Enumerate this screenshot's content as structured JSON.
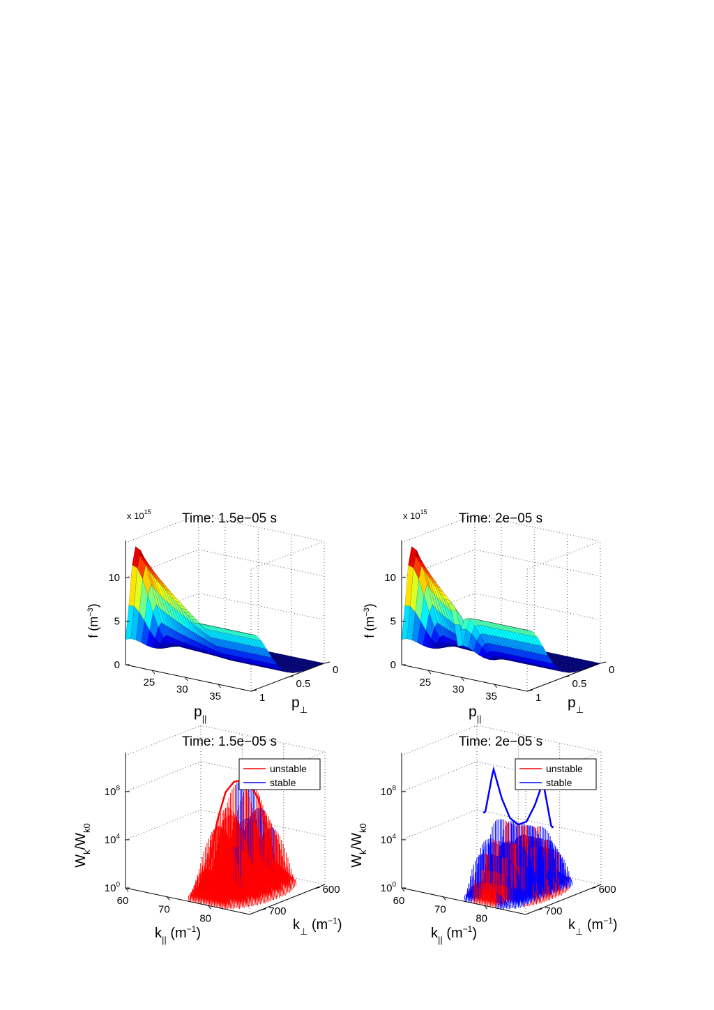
{
  "chart_data": [
    {
      "type": "surface",
      "title": "Time: 1.5e−05 s",
      "xlabel": "p",
      "xlabel_sub": "||",
      "ylabel": "p",
      "ylabel_sub": "⊥",
      "zlabel": "f (m",
      "zlabel_sup": "−3",
      "zlabel_end": ")",
      "z_multiplier": "x 10",
      "z_multiplier_exp": "15",
      "xlim": [
        21,
        40
      ],
      "ylim": [
        0,
        1
      ],
      "zlim": [
        0,
        14
      ],
      "x_ticks": [
        "25",
        "30",
        "35"
      ],
      "y_ticks": [
        "0",
        "0.5",
        "1"
      ],
      "z_ticks": [
        "0",
        "5",
        "10"
      ],
      "colormap": "jet",
      "profile": {
        "peak_p_parallel": 22.5,
        "peak_f": 13.8,
        "cutoff_p_parallel": 31.5,
        "tail_f": 6.5
      }
    },
    {
      "type": "surface",
      "title": "Time: 2e−05 s",
      "xlabel": "p",
      "xlabel_sub": "||",
      "ylabel": "p",
      "ylabel_sub": "⊥",
      "zlabel": "f (m",
      "zlabel_sup": "−3",
      "zlabel_end": ")",
      "z_multiplier": "x 10",
      "z_multiplier_exp": "15",
      "xlim": [
        21,
        40
      ],
      "ylim": [
        0,
        1
      ],
      "zlim": [
        0,
        14
      ],
      "x_ticks": [
        "25",
        "30",
        "35"
      ],
      "y_ticks": [
        "0",
        "0.5",
        "1"
      ],
      "z_ticks": [
        "0",
        "5",
        "10"
      ],
      "colormap": "jet",
      "profile": {
        "peak_p_parallel": 22.5,
        "peak_f": 13.8,
        "cutoff_p_parallel": 29.5,
        "tail_f": 7.0
      }
    },
    {
      "type": "stem3d",
      "title": "Time: 1.5e−05 s",
      "xlabel": "k",
      "xlabel_sub": "||",
      "xlabel_unit": " (m",
      "xlabel_unit_sup": "−1",
      "xlabel_unit_end": ")",
      "ylabel": "k",
      "ylabel_sub": "⊥",
      "ylabel_unit": " (m",
      "ylabel_unit_sup": "−1",
      "ylabel_unit_end": ")",
      "zlabel": "W",
      "zlabel_sub1": "k",
      "zlabel_mid": "/W",
      "zlabel_sub2": "k0",
      "zscale": "log",
      "xlim": [
        60,
        90
      ],
      "ylim": [
        580,
        720
      ],
      "zlim_exp": [
        0,
        11
      ],
      "x_ticks": [
        "60",
        "70",
        "80"
      ],
      "y_ticks": [
        "600",
        "700"
      ],
      "z_ticks": [
        {
          "base": "10",
          "exp": "0"
        },
        {
          "base": "10",
          "exp": "4"
        },
        {
          "base": "10",
          "exp": "8"
        }
      ],
      "legend": {
        "position": "top-right",
        "entries": [
          {
            "name": "unstable",
            "color": "#ff0000"
          },
          {
            "name": "stable",
            "color": "#0000ff"
          }
        ]
      },
      "envelope": {
        "k_parallel": [
          72,
          74,
          76,
          78,
          80,
          82,
          84,
          86,
          88
        ],
        "log10_peak": [
          1.5,
          5.5,
          8.0,
          9.0,
          9.3,
          9.0,
          8.0,
          5.5,
          1.5
        ]
      }
    },
    {
      "type": "stem3d",
      "title": "Time: 2e−05 s",
      "xlabel": "k",
      "xlabel_sub": "||",
      "xlabel_unit": " (m",
      "xlabel_unit_sup": "−1",
      "xlabel_unit_end": ")",
      "ylabel": "k",
      "ylabel_sub": "⊥",
      "ylabel_unit": " (m",
      "ylabel_unit_sup": "−1",
      "ylabel_unit_end": ")",
      "zlabel": "W",
      "zlabel_sub1": "k",
      "zlabel_mid": "/W",
      "zlabel_sub2": "k0",
      "zscale": "log",
      "xlim": [
        60,
        90
      ],
      "ylim": [
        580,
        720
      ],
      "zlim_exp": [
        0,
        11
      ],
      "x_ticks": [
        "60",
        "70",
        "80"
      ],
      "y_ticks": [
        "600",
        "700"
      ],
      "z_ticks": [
        {
          "base": "10",
          "exp": "0"
        },
        {
          "base": "10",
          "exp": "4"
        },
        {
          "base": "10",
          "exp": "8"
        }
      ],
      "legend": {
        "position": "top-right",
        "entries": [
          {
            "name": "unstable",
            "color": "#ff0000"
          },
          {
            "name": "stable",
            "color": "#0000ff"
          }
        ]
      },
      "envelope": {
        "k_parallel": [
          72,
          74,
          76,
          78,
          80,
          82,
          84,
          86,
          88
        ],
        "log10_peak": [
          6.0,
          9.8,
          7.5,
          6.0,
          5.6,
          6.0,
          7.5,
          9.6,
          6.0
        ]
      }
    }
  ]
}
